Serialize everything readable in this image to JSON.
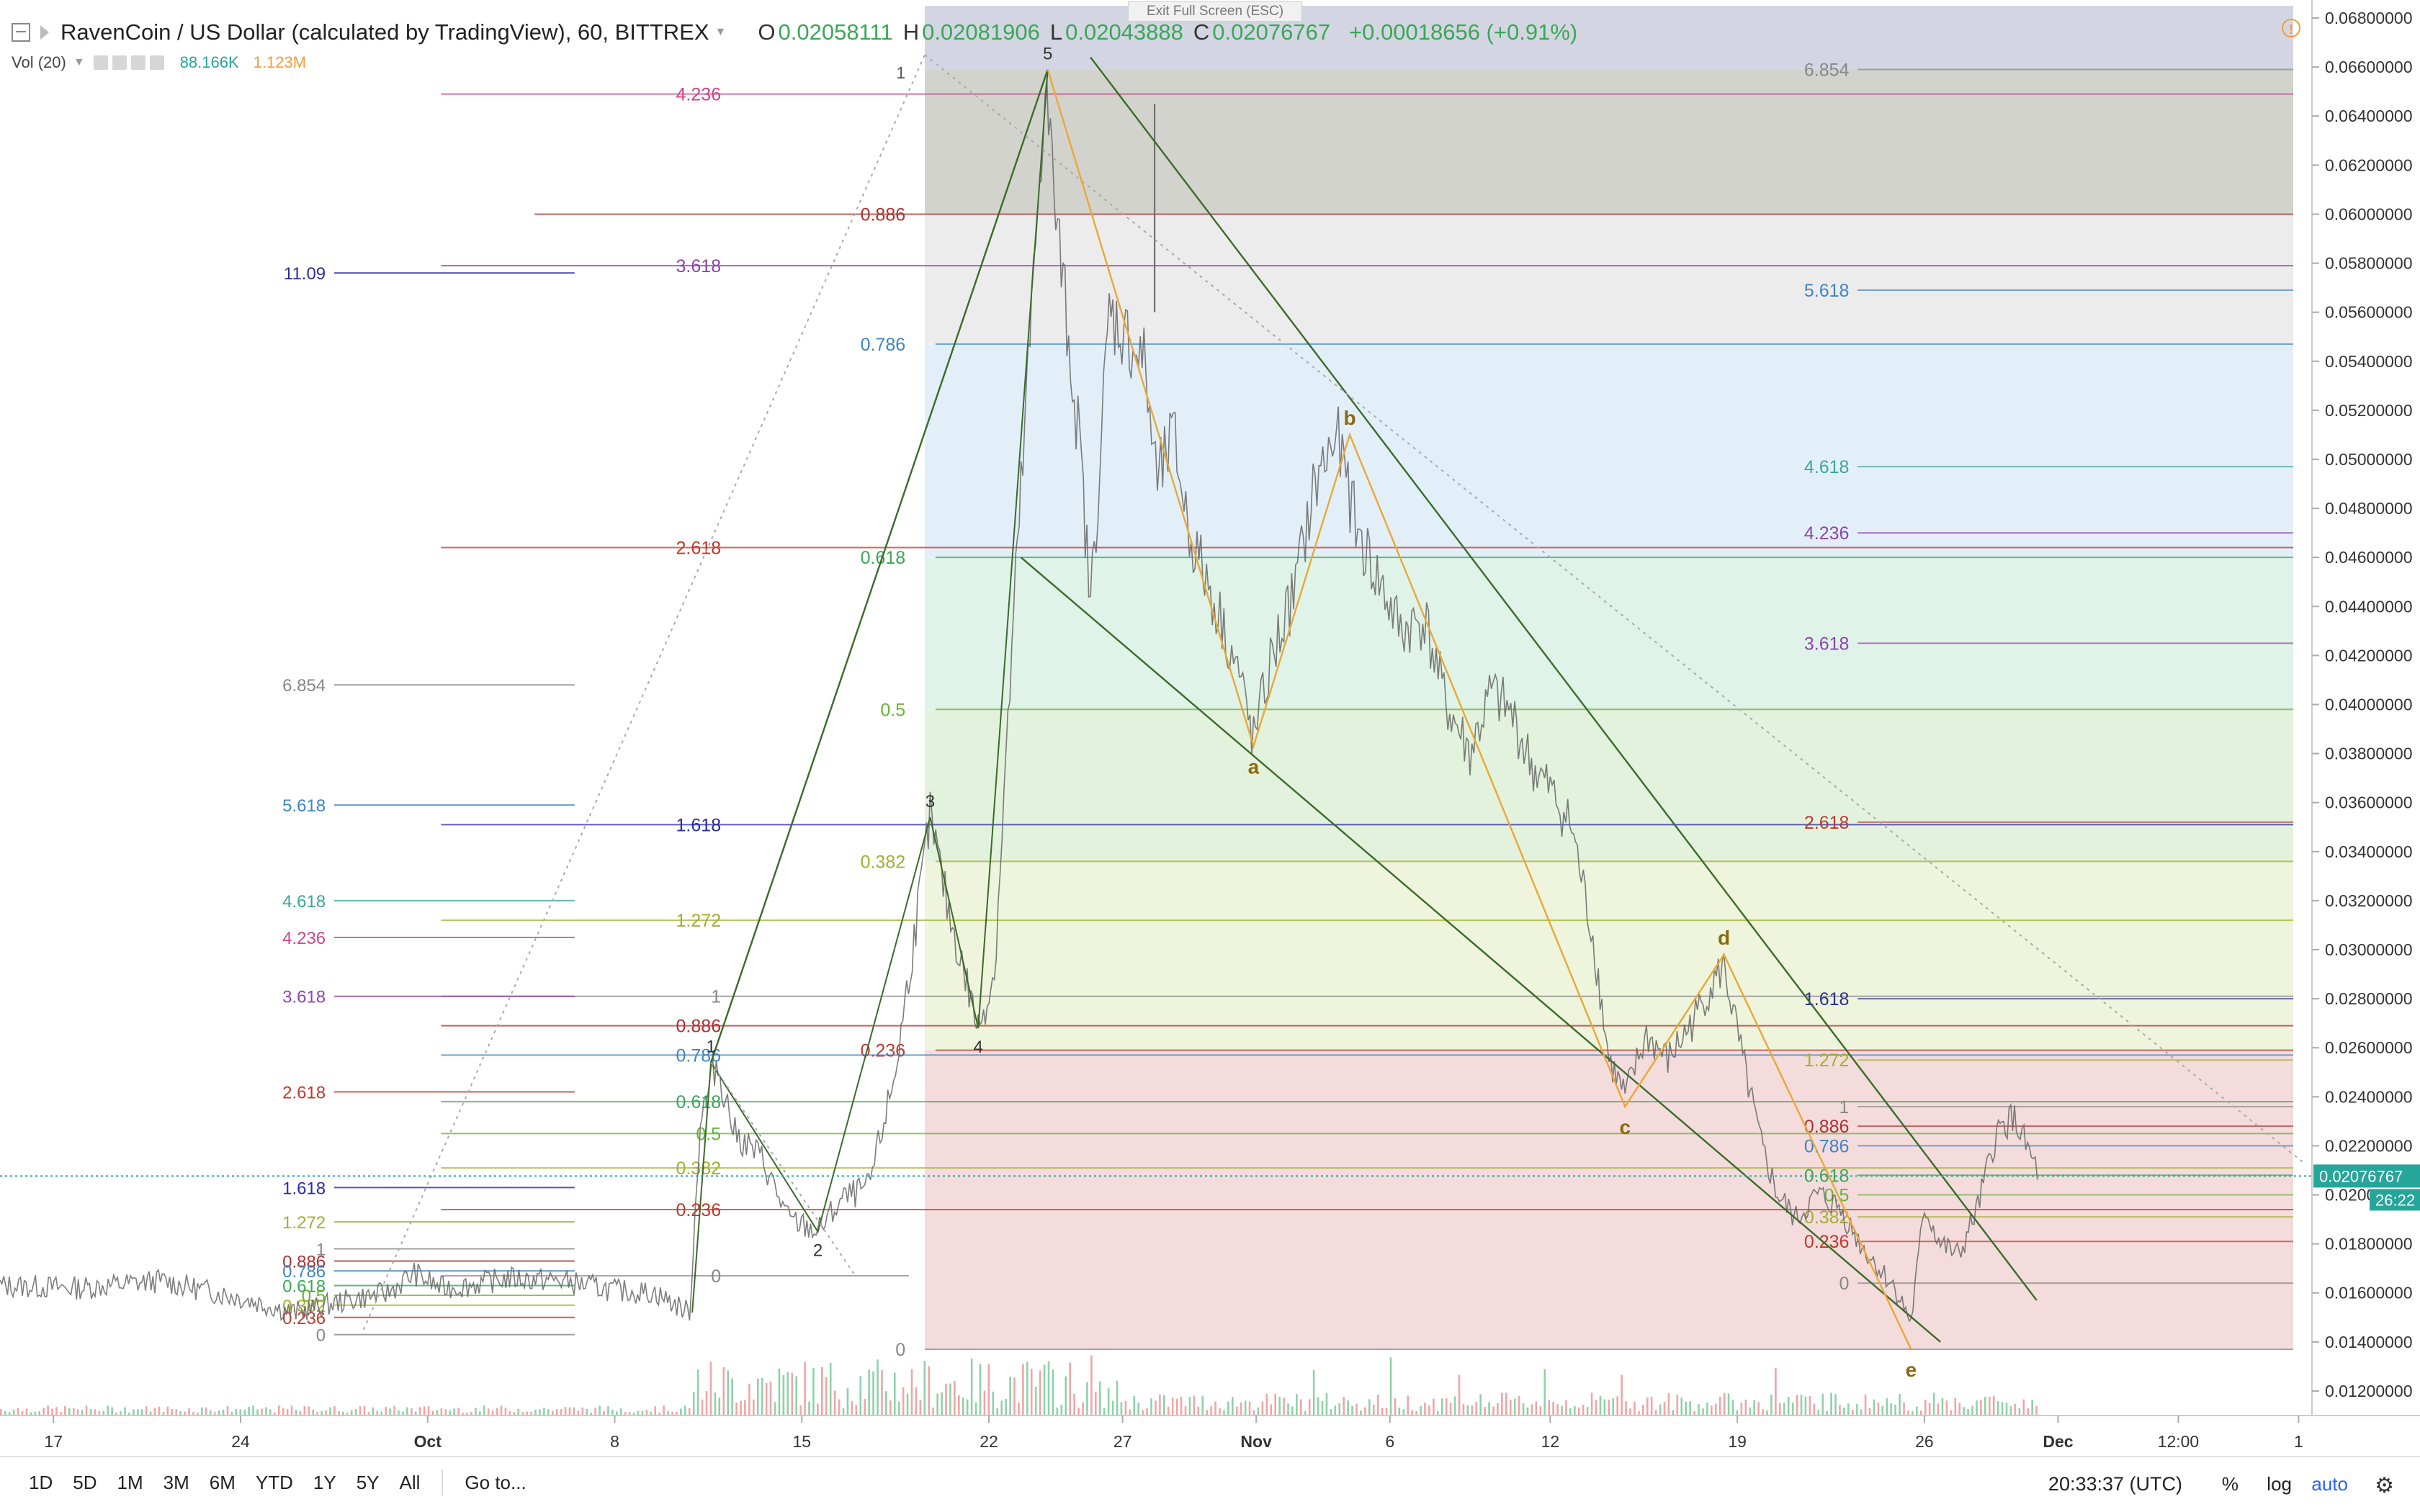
{
  "header": {
    "title": "RavenCoin / US Dollar (calculated by TradingView), 60, BITTREX",
    "ohlc": [
      {
        "k": "O",
        "v": "0.02058111"
      },
      {
        "k": "H",
        "v": "0.02081906"
      },
      {
        "k": "L",
        "v": "0.02043888"
      },
      {
        "k": "C",
        "v": "0.02076767"
      }
    ],
    "change": "+0.00018656 (+0.91%)",
    "volume": {
      "label": "Vol (20)",
      "v1": "88.166K",
      "v2": "1.123M"
    },
    "exit_fullscreen": "Exit Full Screen (ESC)",
    "alert_icon": "!"
  },
  "bottom_toolbar": {
    "ranges": [
      "1D",
      "5D",
      "1M",
      "3M",
      "6M",
      "YTD",
      "1Y",
      "5Y",
      "All"
    ],
    "goto": "Go to...",
    "clock": "20:33:37 (UTC)",
    "percent": "%",
    "log": "log",
    "auto": "auto",
    "gear_icon": "⚙"
  },
  "colors": {
    "up": "#3aa757",
    "down": "#e55b5b",
    "price_tag": "#26a69a",
    "wave": "#e8a838",
    "channel": "#3a6b2a"
  },
  "chart_data": {
    "type": "line",
    "price_axis": {
      "min": 0.011,
      "max": 0.0685,
      "ticks": [
        "0.06800000",
        "0.06600000",
        "0.06400000",
        "0.06200000",
        "0.06000000",
        "0.05800000",
        "0.05600000",
        "0.05400000",
        "0.05200000",
        "0.05000000",
        "0.04800000",
        "0.04600000",
        "0.04400000",
        "0.04200000",
        "0.04000000",
        "0.03800000",
        "0.03600000",
        "0.03400000",
        "0.03200000",
        "0.03000000",
        "0.02800000",
        "0.02600000",
        "0.02400000",
        "0.02200000",
        "0.02000000",
        "0.01800000",
        "0.01600000",
        "0.01400000",
        "0.01200000"
      ],
      "last_price": "0.02076767",
      "countdown": "26:22"
    },
    "time_axis": {
      "ticks": [
        {
          "label": "17",
          "bold": false,
          "t": 0
        },
        {
          "label": "24",
          "bold": false,
          "t": 7
        },
        {
          "label": "Oct",
          "bold": true,
          "t": 14
        },
        {
          "label": "8",
          "bold": false,
          "t": 21
        },
        {
          "label": "15",
          "bold": false,
          "t": 28
        },
        {
          "label": "22",
          "bold": false,
          "t": 35
        },
        {
          "label": "27",
          "bold": false,
          "t": 40
        },
        {
          "label": "Nov",
          "bold": true,
          "t": 45
        },
        {
          "label": "6",
          "bold": false,
          "t": 50
        },
        {
          "label": "12",
          "bold": false,
          "t": 56
        },
        {
          "label": "19",
          "bold": false,
          "t": 63
        },
        {
          "label": "26",
          "bold": false,
          "t": 70
        },
        {
          "label": "Dec",
          "bold": true,
          "t": 75
        },
        {
          "label": "12:00",
          "bold": false,
          "t": 79.5
        },
        {
          "label": "1",
          "bold": false,
          "t": 84
        }
      ],
      "range": [
        -2,
        84.5
      ]
    },
    "price_series": [
      [
        -2,
        0.0163
      ],
      [
        1,
        0.0162
      ],
      [
        4,
        0.0165
      ],
      [
        7,
        0.0158
      ],
      [
        9,
        0.0152
      ],
      [
        11,
        0.0157
      ],
      [
        12.5,
        0.016
      ],
      [
        13.5,
        0.0168
      ],
      [
        14.5,
        0.0162
      ],
      [
        15.5,
        0.0163
      ],
      [
        17,
        0.0166
      ],
      [
        19,
        0.0165
      ],
      [
        21,
        0.0161
      ],
      [
        22.5,
        0.016
      ],
      [
        23.8,
        0.0152
      ],
      [
        24.2,
        0.023
      ],
      [
        24.8,
        0.0254
      ],
      [
        25.5,
        0.0225
      ],
      [
        26.5,
        0.0215
      ],
      [
        27.5,
        0.019
      ],
      [
        28.6,
        0.0185
      ],
      [
        29.5,
        0.0198
      ],
      [
        30.5,
        0.0203
      ],
      [
        31.5,
        0.025
      ],
      [
        32.2,
        0.0305
      ],
      [
        32.8,
        0.0354
      ],
      [
        33.5,
        0.0315
      ],
      [
        34.6,
        0.0268
      ],
      [
        35.2,
        0.029
      ],
      [
        36,
        0.045
      ],
      [
        36.6,
        0.056
      ],
      [
        37.1,
        0.0655
      ],
      [
        37.5,
        0.06
      ],
      [
        38.4,
        0.0505
      ],
      [
        38.8,
        0.044
      ],
      [
        39.5,
        0.056
      ],
      [
        40.8,
        0.054
      ],
      [
        41.3,
        0.049
      ],
      [
        41.9,
        0.051
      ],
      [
        42.5,
        0.047
      ],
      [
        43.5,
        0.044
      ],
      [
        44.3,
        0.0415
      ],
      [
        44.9,
        0.0385
      ],
      [
        45.6,
        0.042
      ],
      [
        46.4,
        0.0445
      ],
      [
        47.2,
        0.049
      ],
      [
        48.0,
        0.051
      ],
      [
        48.8,
        0.047
      ],
      [
        49.6,
        0.045
      ],
      [
        50.4,
        0.043
      ],
      [
        51.3,
        0.0435
      ],
      [
        52.1,
        0.04
      ],
      [
        53.0,
        0.038
      ],
      [
        53.8,
        0.0405
      ],
      [
        54.6,
        0.0395
      ],
      [
        55.3,
        0.0375
      ],
      [
        56.0,
        0.0365
      ],
      [
        56.8,
        0.035
      ],
      [
        57.6,
        0.0305
      ],
      [
        58.2,
        0.0255
      ],
      [
        58.8,
        0.024
      ],
      [
        59.6,
        0.0265
      ],
      [
        60.4,
        0.0255
      ],
      [
        61.3,
        0.027
      ],
      [
        62.0,
        0.0285
      ],
      [
        62.5,
        0.0293
      ],
      [
        63.2,
        0.0255
      ],
      [
        63.9,
        0.022
      ],
      [
        64.5,
        0.02
      ],
      [
        65.2,
        0.019
      ],
      [
        66.0,
        0.02
      ],
      [
        66.8,
        0.0195
      ],
      [
        67.6,
        0.018
      ],
      [
        68.3,
        0.017
      ],
      [
        68.9,
        0.0162
      ],
      [
        69.5,
        0.0148
      ],
      [
        70.0,
        0.0195
      ],
      [
        70.6,
        0.018
      ],
      [
        71.3,
        0.0175
      ],
      [
        72.0,
        0.0195
      ],
      [
        72.7,
        0.0225
      ],
      [
        73.3,
        0.0232
      ],
      [
        74.0,
        0.0215
      ],
      [
        74.3,
        0.0208
      ]
    ],
    "spikes": [
      [
        41.2,
        0.0645,
        0.056
      ]
    ],
    "fib_zones": [
      {
        "from": 0.0659,
        "to": 0.0685,
        "fill": "#d3d6e2"
      },
      {
        "from": 0.06,
        "to": 0.0659,
        "fill": "#d3d3ce"
      },
      {
        "from": 0.0547,
        "to": 0.06,
        "fill": "#ececec"
      },
      {
        "from": 0.046,
        "to": 0.0547,
        "fill": "#e3eff8"
      },
      {
        "from": 0.0398,
        "to": 0.046,
        "fill": "#e0f3e8"
      },
      {
        "from": 0.0336,
        "to": 0.0398,
        "fill": "#e3f2dc"
      },
      {
        "from": 0.0259,
        "to": 0.0336,
        "fill": "#eff4dc"
      },
      {
        "from": 0.0137,
        "to": 0.0259,
        "fill": "#f4dcdc"
      }
    ],
    "fib_lines": [
      {
        "label": "4.236",
        "price": 0.0649,
        "color": "#d0448c",
        "t0": 14.5,
        "t1": 83.8,
        "lx": 25.3
      },
      {
        "label": "0.886",
        "price": 0.06,
        "color": "#b03030",
        "t0": 18,
        "t1": 83.8,
        "lx": 32.2
      },
      {
        "label": "3.618",
        "price": 0.0579,
        "color": "#8e44ad",
        "t0": 14.5,
        "t1": 83.8,
        "lx": 25.3
      },
      {
        "label": "0.786",
        "price": 0.0547,
        "color": "#3d85c6",
        "t0": 33,
        "t1": 83.8,
        "lx": 32.2
      },
      {
        "label": "2.618",
        "price": 0.0464,
        "color": "#c0392b",
        "t0": 14.5,
        "t1": 83.8,
        "lx": 25.3
      },
      {
        "label": "0.618",
        "price": 0.046,
        "color": "#3aa757",
        "t0": 33,
        "t1": 83.8,
        "lx": 32.2
      },
      {
        "label": "0.5",
        "price": 0.0398,
        "color": "#67b33b",
        "t0": 33,
        "t1": 83.8,
        "lx": 32.2
      },
      {
        "label": "1.618",
        "price": 0.0351,
        "color": "#2c2ca0",
        "t0": 14.5,
        "t1": 83.8,
        "lx": 25.3
      },
      {
        "label": "0.382",
        "price": 0.0336,
        "color": "#a0b030",
        "t0": 33,
        "t1": 83.8,
        "lx": 32.2
      },
      {
        "label": "1.272",
        "price": 0.0312,
        "color": "#a0b030",
        "t0": 14.5,
        "t1": 83.8,
        "lx": 25.3
      },
      {
        "label": "1",
        "price": 0.0281,
        "color": "#888888",
        "t0": 14.5,
        "t1": 83.8,
        "lx": 25.3
      },
      {
        "label": "0.886",
        "price": 0.0269,
        "color": "#b03030",
        "t0": 14.5,
        "t1": 83.8,
        "lx": 25.3
      },
      {
        "label": "0.236",
        "price": 0.0259,
        "color": "#c0392b",
        "t0": 33,
        "t1": 83.8,
        "lx": 32.2
      },
      {
        "label": "0.786",
        "price": 0.0257,
        "color": "#3d85c6",
        "t0": 14.5,
        "t1": 83.8,
        "lx": 25.3
      },
      {
        "label": "0.618",
        "price": 0.0238,
        "color": "#3aa757",
        "t0": 14.5,
        "t1": 83.8,
        "lx": 25.3
      },
      {
        "label": "0.5",
        "price": 0.0225,
        "color": "#67b33b",
        "t0": 14.5,
        "t1": 83.8,
        "lx": 25.3
      },
      {
        "label": "0.382",
        "price": 0.0211,
        "color": "#a0b030",
        "t0": 14.5,
        "t1": 83.8,
        "lx": 25.3
      },
      {
        "label": "0.236",
        "price": 0.0194,
        "color": "#c0392b",
        "t0": 14.5,
        "t1": 83.8,
        "lx": 25.3
      },
      {
        "label": "0",
        "price": 0.0167,
        "color": "#888888",
        "t0": 14.5,
        "t1": 32,
        "lx": 25.3
      },
      {
        "label": "0",
        "price": 0.0137,
        "color": "#888888",
        "t0": 32.6,
        "t1": 83.8,
        "lx": 32.2
      }
    ],
    "fib_top_marker": {
      "label": "1",
      "price": 0.0658,
      "t": 32.2
    },
    "fib_left_set": [
      {
        "label": "11.09",
        "price": 0.0576,
        "color": "#2c2ca0"
      },
      {
        "label": "6.854",
        "price": 0.0408,
        "color": "#888888"
      },
      {
        "label": "5.618",
        "price": 0.0359,
        "color": "#3d85c6"
      },
      {
        "label": "4.618",
        "price": 0.032,
        "color": "#3aa79a"
      },
      {
        "label": "4.236",
        "price": 0.0305,
        "color": "#d0448c"
      },
      {
        "label": "3.618",
        "price": 0.0281,
        "color": "#8e44ad"
      },
      {
        "label": "2.618",
        "price": 0.0242,
        "color": "#c0392b"
      },
      {
        "label": "1.618",
        "price": 0.0203,
        "color": "#2c2ca0"
      },
      {
        "label": "1.272",
        "price": 0.0189,
        "color": "#a0b030"
      },
      {
        "label": "1",
        "price": 0.0178,
        "color": "#888888"
      },
      {
        "label": "0.886",
        "price": 0.0173,
        "color": "#b03030"
      },
      {
        "label": "0.786",
        "price": 0.0169,
        "color": "#3d85c6"
      },
      {
        "label": "0.618",
        "price": 0.0163,
        "color": "#3aa757"
      },
      {
        "label": "0.5",
        "price": 0.0159,
        "color": "#67b33b"
      },
      {
        "label": "0.382",
        "price": 0.0155,
        "color": "#a0b030"
      },
      {
        "label": "0.236",
        "price": 0.015,
        "color": "#c0392b"
      },
      {
        "label": "0",
        "price": 0.0143,
        "color": "#888888"
      }
    ],
    "fib_right_set": [
      {
        "label": "6.854",
        "price": 0.0659,
        "color": "#888888"
      },
      {
        "label": "5.618",
        "price": 0.0569,
        "color": "#3d85c6"
      },
      {
        "label": "4.618",
        "price": 0.0497,
        "color": "#3aa79a"
      },
      {
        "label": "4.236",
        "price": 0.047,
        "color": "#8e44ad"
      },
      {
        "label": "3.618",
        "price": 0.0425,
        "color": "#8e44ad"
      },
      {
        "label": "2.618",
        "price": 0.0352,
        "color": "#c0392b"
      },
      {
        "label": "1.618",
        "price": 0.028,
        "color": "#2c2ca0"
      },
      {
        "label": "1.272",
        "price": 0.0255,
        "color": "#a0b030"
      },
      {
        "label": "1",
        "price": 0.0236,
        "color": "#888888"
      },
      {
        "label": "0.886",
        "price": 0.0228,
        "color": "#b03030"
      },
      {
        "label": "0.786",
        "price": 0.022,
        "color": "#3d85c6"
      },
      {
        "label": "0.618",
        "price": 0.0208,
        "color": "#3aa757"
      },
      {
        "label": "0.5",
        "price": 0.02,
        "color": "#67b33b"
      },
      {
        "label": "0.382",
        "price": 0.0191,
        "color": "#a0b030"
      },
      {
        "label": "0.236",
        "price": 0.0181,
        "color": "#c0392b"
      },
      {
        "label": "0",
        "price": 0.0164,
        "color": "#888888"
      }
    ],
    "impulse_waves": [
      {
        "label": "1",
        "t": 24.6,
        "price": 0.0254
      },
      {
        "label": "2",
        "t": 28.6,
        "price": 0.0185
      },
      {
        "label": "3",
        "t": 32.8,
        "price": 0.0354
      },
      {
        "label": "4",
        "t": 34.6,
        "price": 0.0268
      },
      {
        "label": "5",
        "t": 37.2,
        "price": 0.0659
      }
    ],
    "corrective_waves": [
      {
        "label": "a",
        "t": 44.9,
        "price": 0.0383
      },
      {
        "label": "b",
        "t": 48.5,
        "price": 0.051
      },
      {
        "label": "c",
        "t": 58.8,
        "price": 0.0236
      },
      {
        "label": "d",
        "t": 62.5,
        "price": 0.0298
      },
      {
        "label": "e",
        "t": 69.5,
        "price": 0.0137
      }
    ],
    "channel_lines": [
      {
        "t0": 38.8,
        "p0": 0.0664,
        "t1": 74.2,
        "p1": 0.0157
      },
      {
        "t0": 36.2,
        "p0": 0.046,
        "t1": 70.6,
        "p1": 0.014
      },
      {
        "t0": 24.6,
        "p0": 0.0254,
        "t1": 37.2,
        "p1": 0.0659
      }
    ],
    "dotted_trend": [
      {
        "t0": 32.6,
        "p0": 0.0665,
        "t1": 84.2,
        "p1": 0.0213
      },
      {
        "t0": 11.6,
        "p0": 0.0145,
        "t1": 32.6,
        "p1": 0.0665
      }
    ]
  }
}
